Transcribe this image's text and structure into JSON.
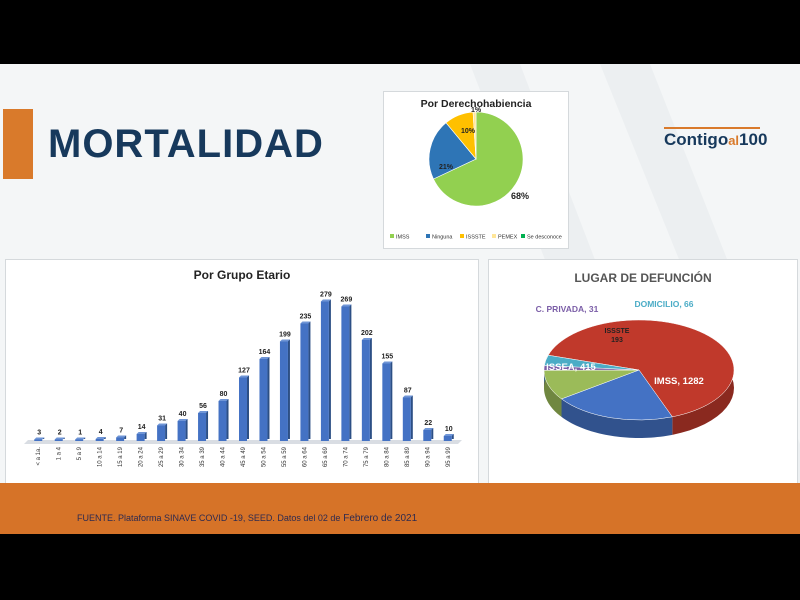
{
  "slide_title": "MORTALIDAD",
  "logo": {
    "main": "Contigo",
    "small": "al",
    "number": "100"
  },
  "source": {
    "prefix": "FUENTE. Plataforma SINAVE COVID -19, SEED. Datos del 02 de",
    "big": " Febrero de 2021"
  },
  "colors": {
    "accent": "#d97a2b",
    "title": "#17395c",
    "bar": "#4472c4",
    "footer": "#d67328"
  },
  "chart_data": [
    {
      "type": "pie",
      "title": "Por Derechohabiencia",
      "labels": [
        "IMSS",
        "Ninguna",
        "ISSSTE",
        "PEMEX",
        "Se desconoce"
      ],
      "values": [
        68,
        21,
        10,
        1,
        0
      ],
      "value_labels": [
        "68%",
        "21%",
        "10%",
        "1%",
        ""
      ],
      "colors": [
        "#92d050",
        "#2e75b6",
        "#ffc000",
        "#ffe699",
        "#00b050"
      ],
      "legend_position": "bottom"
    },
    {
      "type": "bar",
      "title": "Por Grupo Etario",
      "categories": [
        "< a 1a.",
        "1 a 4",
        "5 a 9",
        "10 a 14",
        "15 a 19",
        "20 a 24",
        "25 a 29",
        "30 a 34",
        "35 a 39",
        "40 a 44",
        "45 a 49",
        "50 a 54",
        "55 a 59",
        "60 a 64",
        "65 a 69",
        "70 a 74",
        "75 a 79",
        "80 a 84",
        "85 a 89",
        "90 a 94",
        "95 a 99"
      ],
      "values": [
        3,
        2,
        1,
        4,
        7,
        14,
        31,
        40,
        56,
        80,
        127,
        164,
        199,
        235,
        279,
        269,
        202,
        155,
        87,
        22,
        10
      ],
      "ylim": [
        0,
        300
      ],
      "grid": false
    },
    {
      "type": "pie",
      "title": "LUGAR DE DEFUNCIÓN",
      "labels": [
        "IMSS",
        "ISSEA",
        "ISSSTE",
        "C. PRIVADA",
        "DOMICILIO"
      ],
      "values": [
        1282,
        415,
        193,
        31,
        66
      ],
      "display_labels": [
        "IMSS, 1282",
        "ISSEA, 415",
        "ISSSTE\n193",
        "C. PRIVADA, 31",
        "DOMICILIO, 66"
      ],
      "colors": [
        "#c0392b",
        "#4472c4",
        "#9bbb59",
        "#7b5ea7",
        "#4bacc6"
      ],
      "style": "3d"
    }
  ]
}
